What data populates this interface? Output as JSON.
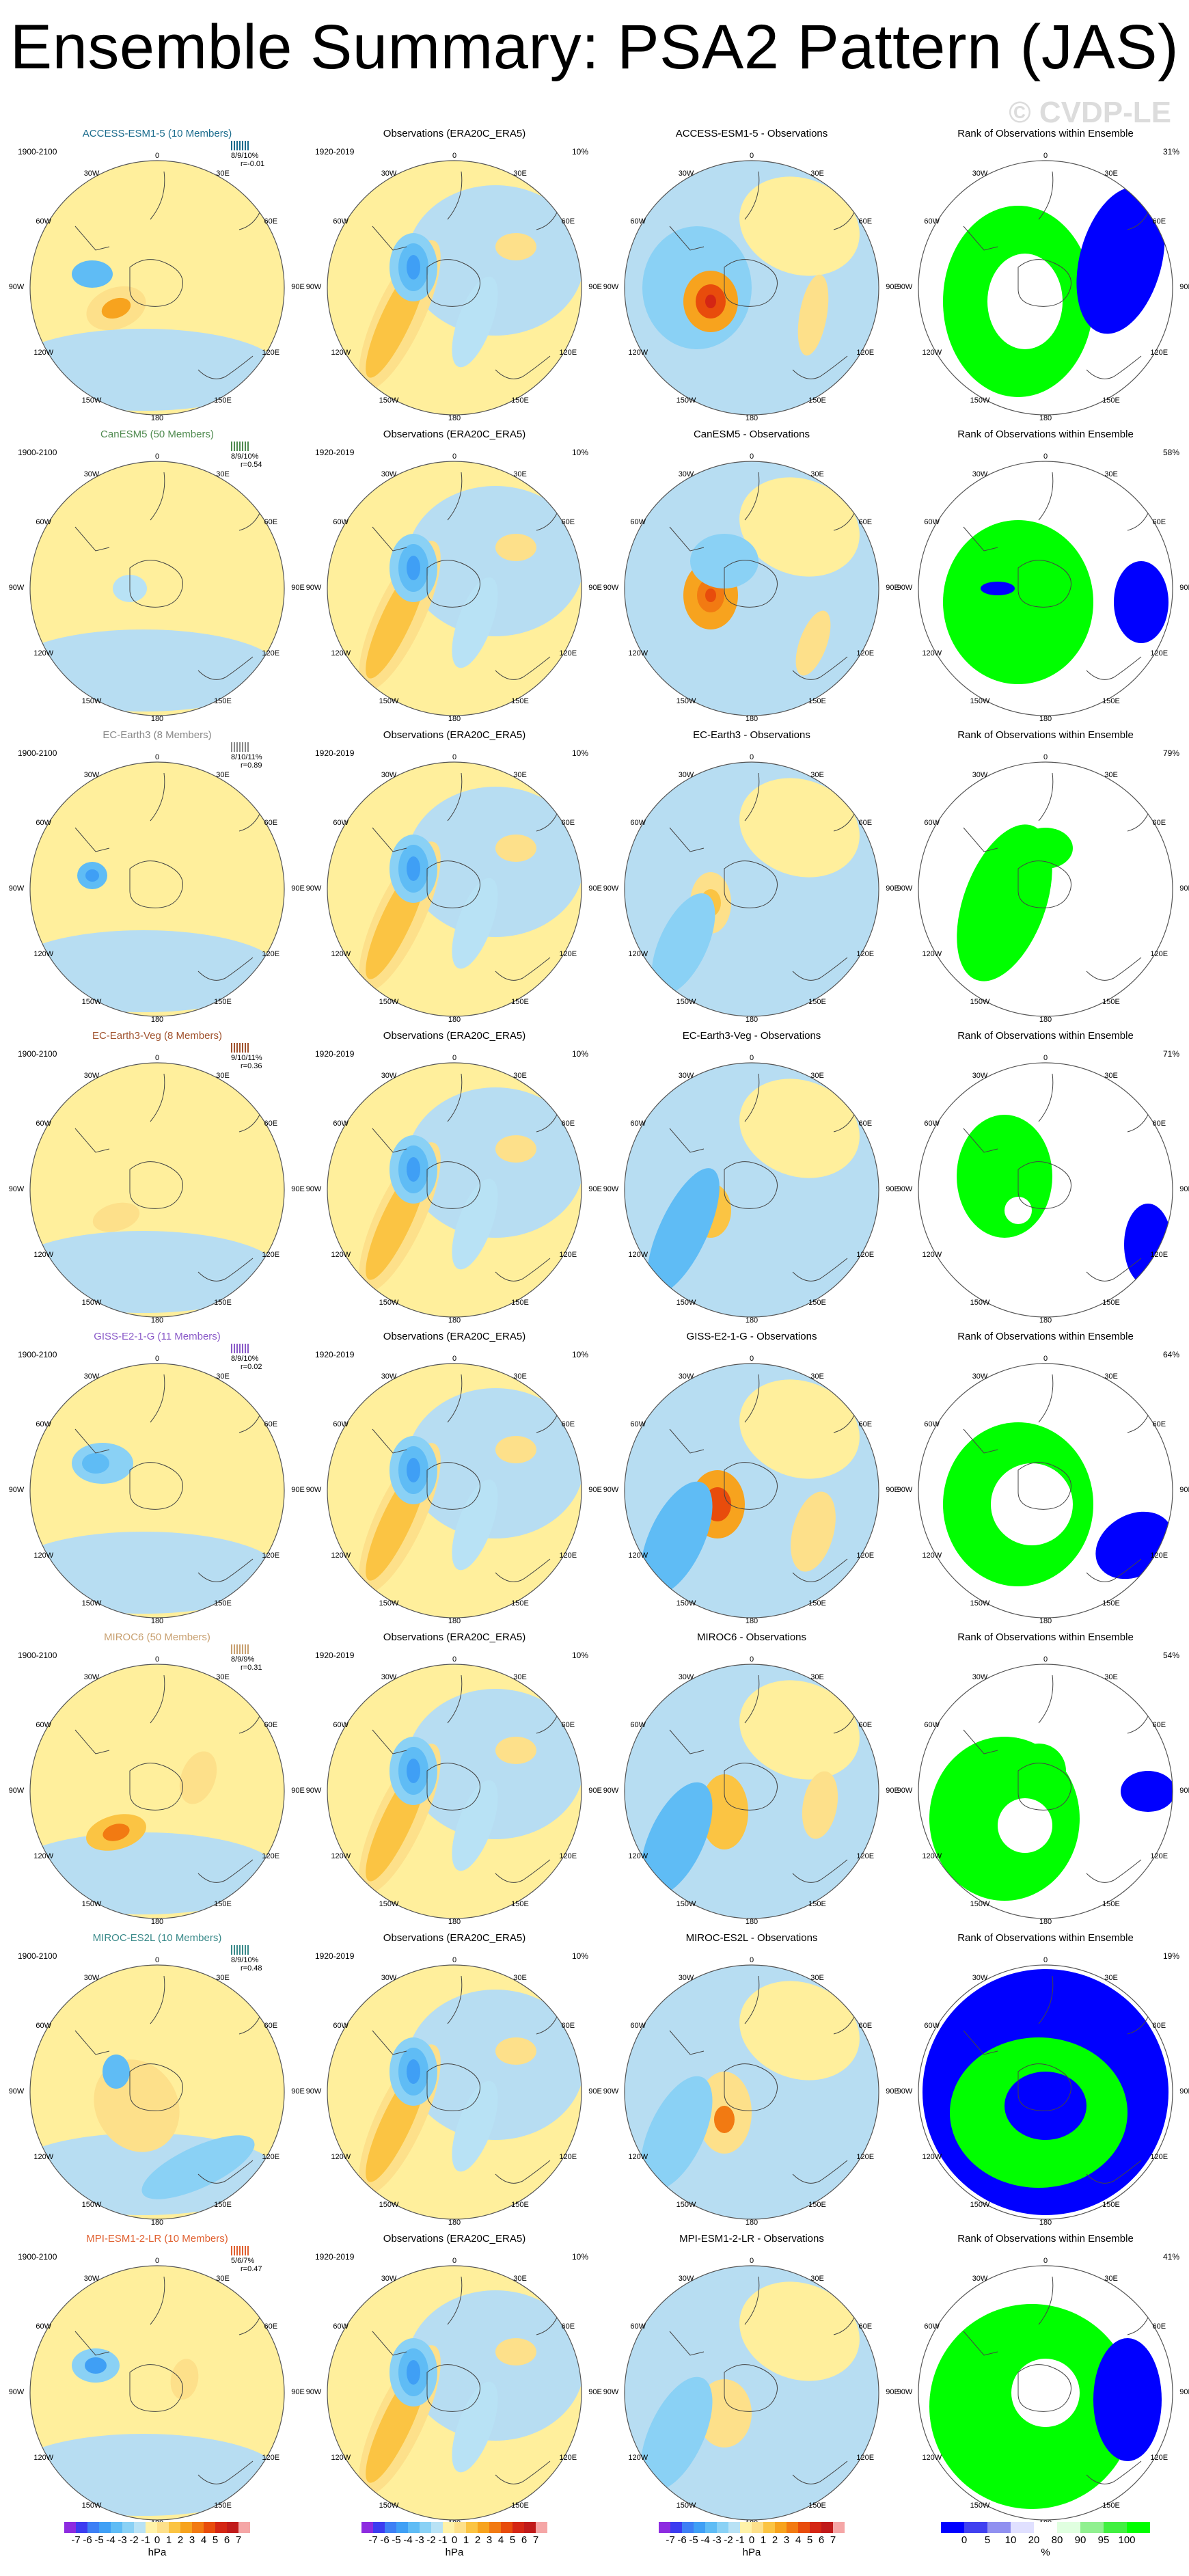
{
  "title": "Ensemble Summary: PSA2 Pattern (JAS)",
  "watermark": "© CVDP-LE",
  "labels": {
    "lon": [
      "0",
      "30E",
      "60E",
      "90E",
      "120E",
      "150E",
      "180",
      "150W",
      "120W",
      "90W",
      "60W",
      "30W"
    ]
  },
  "obs_title": "Observations (ERA20C_ERA5)",
  "obs_period": "1920-2019",
  "obs_pct": "10%",
  "rank_title": "Rank of Observations within Ensemble",
  "colors": {
    "hpa_scale": [
      "#8d2be0",
      "#3c3cf0",
      "#3d7ff5",
      "#3f9ff5",
      "#5fbcf5",
      "#8ad1f5",
      "#b8e2f5",
      "#fff2a8",
      "#fde08a",
      "#fbc443",
      "#f7a31e",
      "#f27a12",
      "#e84c0c",
      "#d42614",
      "#c01a1a",
      "#f5a6a6"
    ],
    "rank_scale": [
      "#0000ff",
      "#4040f0",
      "#9090f0",
      "#e0e0ff",
      "#ffffff",
      "#e0ffe0",
      "#90f090",
      "#40f040",
      "#00ff00"
    ],
    "warm": "#ffef9c",
    "cool": "#b7ddf2"
  },
  "rows": [
    {
      "model": "ACCESS-ESM1-5 (10 Members)",
      "model_color": "#1a6b8c",
      "period": "1900-2100",
      "stats_line1": "8/9/10%",
      "stats_line2": "r=-0.01",
      "diff_title": "ACCESS-ESM1-5 - Observations",
      "rank_pct": "31%"
    },
    {
      "model": "CanESM5 (50 Members)",
      "model_color": "#4f8a4f",
      "period": "1900-2100",
      "stats_line1": "8/9/10%",
      "stats_line2": "r=0.54",
      "diff_title": "CanESM5 - Observations",
      "rank_pct": "58%"
    },
    {
      "model": "EC-Earth3 (8 Members)",
      "model_color": "#888888",
      "period": "1900-2100",
      "stats_line1": "8/10/11%",
      "stats_line2": "r=0.89",
      "diff_title": "EC-Earth3 - Observations",
      "rank_pct": "79%"
    },
    {
      "model": "EC-Earth3-Veg (8 Members)",
      "model_color": "#a0522d",
      "period": "1900-2100",
      "stats_line1": "9/10/11%",
      "stats_line2": "r=0.36",
      "diff_title": "EC-Earth3-Veg - Observations",
      "rank_pct": "71%"
    },
    {
      "model": "GISS-E2-1-G (11 Members)",
      "model_color": "#8a5ac8",
      "period": "1900-2100",
      "stats_line1": "8/9/10%",
      "stats_line2": "r=0.02",
      "diff_title": "GISS-E2-1-G - Observations",
      "rank_pct": "64%"
    },
    {
      "model": "MIROC6 (50 Members)",
      "model_color": "#c8a070",
      "period": "1900-2100",
      "stats_line1": "8/9/9%",
      "stats_line2": "r=0.31",
      "diff_title": "MIROC6 - Observations",
      "rank_pct": "54%"
    },
    {
      "model": "MIROC-ES2L (10 Members)",
      "model_color": "#3a8a8a",
      "period": "1900-2100",
      "stats_line1": "8/9/10%",
      "stats_line2": "r=0.48",
      "diff_title": "MIROC-ES2L - Observations",
      "rank_pct": "19%"
    },
    {
      "model": "MPI-ESM1-2-LR (10 Members)",
      "model_color": "#e06030",
      "period": "1900-2100",
      "stats_line1": "5/6/7%",
      "stats_line2": "r=0.47",
      "diff_title": "MPI-ESM1-2-LR - Observations",
      "rank_pct": "41%"
    }
  ],
  "colorbars": {
    "hpa_ticks": [
      "-7",
      "-6",
      "-5",
      "-4",
      "-3",
      "-2",
      "-1",
      "0",
      "1",
      "2",
      "3",
      "4",
      "5",
      "6",
      "7"
    ],
    "hpa_unit": "hPa",
    "rank_ticks": [
      "0",
      "5",
      "10",
      "20",
      "80",
      "90",
      "95",
      "100"
    ],
    "rank_unit": "%"
  }
}
